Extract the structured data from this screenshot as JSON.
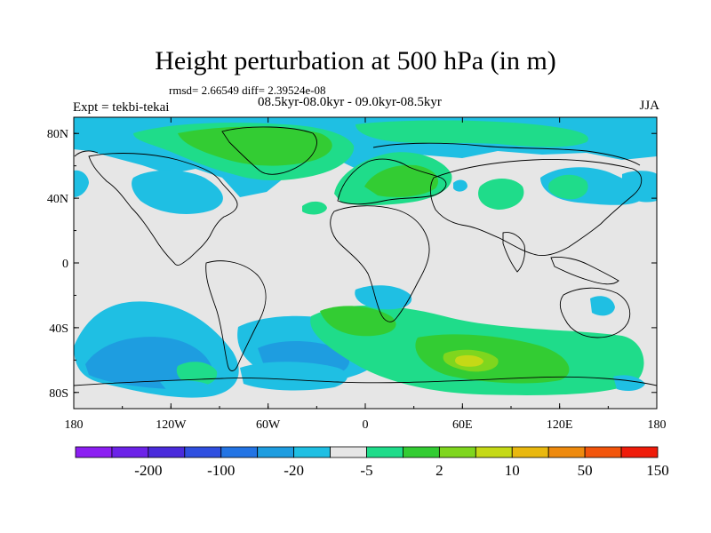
{
  "title": "Height perturbation at 500 hPa (in m)",
  "stats": "rmsd= 2.66549 diff= 2.39524e-08",
  "periods": "08.5kyr-08.0kyr - 09.0kyr-08.5kyr",
  "left_label": "Expt = tekbi-tekai",
  "right_label": "JJA",
  "map": {
    "lon_range": [
      -180,
      180
    ],
    "lat_range": [
      -90,
      90
    ],
    "x_ticks": [
      {
        "lon": -180,
        "label": "180"
      },
      {
        "lon": -120,
        "label": "120W"
      },
      {
        "lon": -60,
        "label": "60W"
      },
      {
        "lon": 0,
        "label": "0"
      },
      {
        "lon": 60,
        "label": "60E"
      },
      {
        "lon": 120,
        "label": "120E"
      },
      {
        "lon": 180,
        "label": "180"
      }
    ],
    "y_ticks": [
      {
        "lat": 80,
        "label": "80N"
      },
      {
        "lat": 40,
        "label": "40N"
      },
      {
        "lat": 0,
        "label": "0"
      },
      {
        "lat": -40,
        "label": "40S"
      },
      {
        "lat": -80,
        "label": "80S"
      }
    ],
    "background_color": "#e6e6e6",
    "coastline_color": "#000000"
  },
  "colorbar": {
    "colors": [
      "#8c1ff2",
      "#6c22e8",
      "#4a2bdc",
      "#2f4fe0",
      "#2374e4",
      "#1e9de0",
      "#1fbfe3",
      "#e6e6e6",
      "#1fdc8a",
      "#33cc33",
      "#7fd61e",
      "#c5d916",
      "#e9b80f",
      "#ee8a0e",
      "#f2550c",
      "#ef1c0a"
    ],
    "labels": [
      {
        "after_index": 1,
        "label": "-200"
      },
      {
        "after_index": 3,
        "label": "-100"
      },
      {
        "after_index": 5,
        "label": "-20"
      },
      {
        "after_index": 7,
        "label": "-5"
      },
      {
        "after_index": 9,
        "label": "2"
      },
      {
        "after_index": 11,
        "label": "10"
      },
      {
        "after_index": 13,
        "label": "50"
      },
      {
        "after_index": 15,
        "label": "150"
      }
    ]
  },
  "contour_colors": {
    "neg_light": "#1fbfe3",
    "neg_mid": "#1e9de0",
    "neg_dark": "#2374e4",
    "pos_light": "#1fdc8a",
    "pos_mid": "#33cc33",
    "pos_high": "#7fd61e",
    "pos_max": "#c5d916"
  }
}
